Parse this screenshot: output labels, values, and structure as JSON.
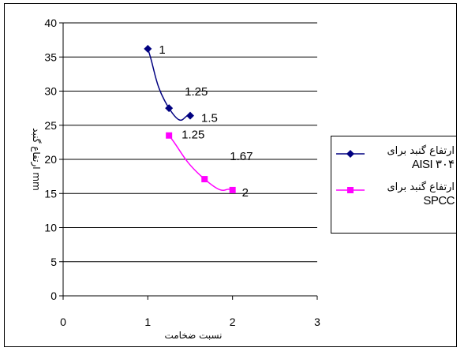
{
  "chart_data": {
    "type": "scatter",
    "xlabel": "نسبت ضخامت",
    "ylabel": "ارتفاع گنبد mm",
    "xlim": [
      0,
      3
    ],
    "ylim": [
      0,
      40
    ],
    "xticks": [
      0,
      1,
      2,
      3
    ],
    "yticks": [
      0,
      5,
      10,
      15,
      20,
      25,
      30,
      35,
      40
    ],
    "grid": "horizontal",
    "legend": "right",
    "series": [
      {
        "name": "ارتفاع گنبد برای AISI ۳۰۴",
        "color": "#000080",
        "marker": "diamond",
        "x": [
          1,
          1.25,
          1.5
        ],
        "y": [
          36.2,
          27.5,
          26.4
        ],
        "labels": [
          "1",
          "1.25",
          "1.5"
        ]
      },
      {
        "name": "ارتفاع گنبد برای SPCC",
        "color": "#ff00ff",
        "marker": "square",
        "x": [
          1.25,
          1.67,
          2
        ],
        "y": [
          23.5,
          17.1,
          15.5
        ],
        "labels": [
          "1.25",
          "1.67",
          "2"
        ]
      }
    ]
  },
  "legend_items": [
    {
      "text": "ارتفاع گنبد برای",
      "latin": "AISI ۳۰۴"
    },
    {
      "text": "ارتفاع گنبد برای",
      "latin": "SPCC"
    }
  ]
}
